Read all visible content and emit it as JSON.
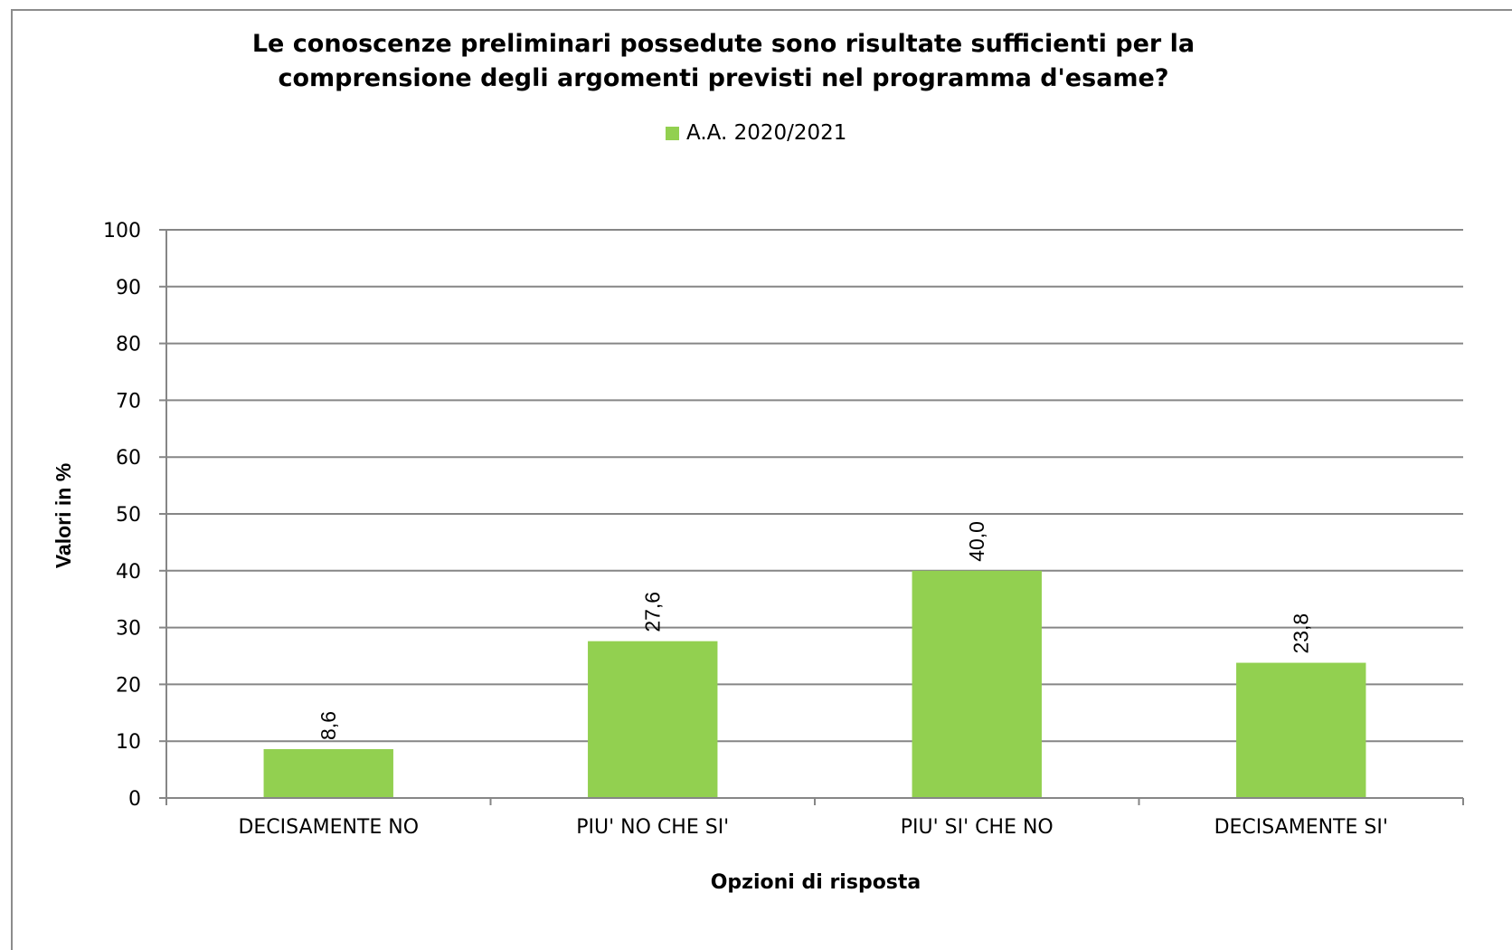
{
  "chart_data": {
    "type": "bar",
    "title": "Le conoscenze preliminari possedute sono risultate sufficienti per la comprensione degli argomenti previsti nel programma d'esame?",
    "title_lines": [
      "Le conoscenze preliminari possedute sono risultate sufficienti per la",
      "comprensione degli argomenti previsti nel programma d'esame?"
    ],
    "categories": [
      "DECISAMENTE NO",
      "PIU' NO CHE SI'",
      "PIU' SI' CHE NO",
      "DECISAMENTE SI'"
    ],
    "series": [
      {
        "name": "A.A. 2020/2021",
        "values": [
          8.6,
          27.6,
          40.0,
          23.8
        ],
        "color": "#92d050"
      }
    ],
    "data_labels": [
      "8,6",
      "27,6",
      "40,0",
      "23,8"
    ],
    "xlabel": "Opzioni di risposta",
    "ylabel": "Valori in %",
    "ylim": [
      0,
      100
    ],
    "yticks": [
      "0",
      "10",
      "20",
      "30",
      "40",
      "50",
      "60",
      "70",
      "80",
      "90",
      "100"
    ],
    "grid": true,
    "legend_position": "top-center"
  }
}
